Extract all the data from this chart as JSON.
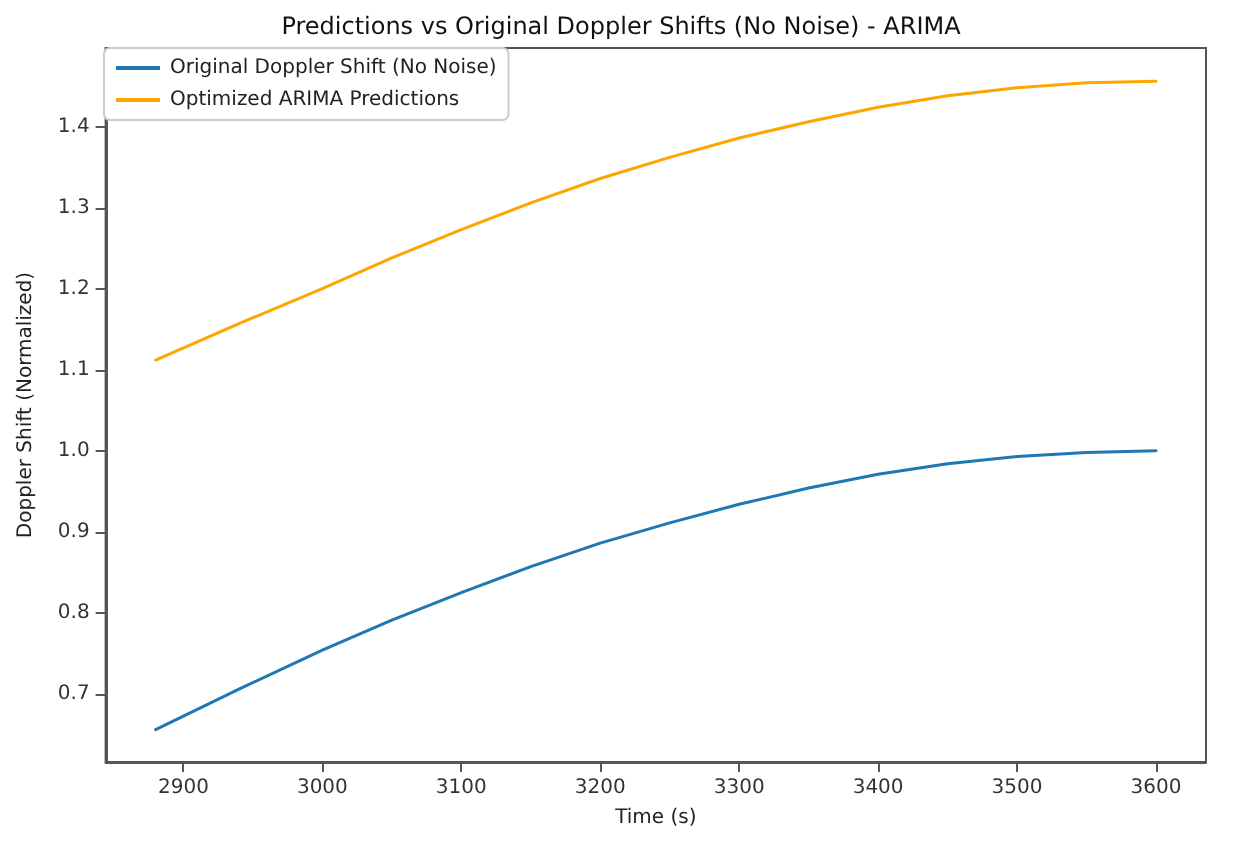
{
  "chart_data": {
    "type": "line",
    "title": "Predictions vs Original Doppler Shifts (No Noise) - ARIMA",
    "xlabel": "Time (s)",
    "ylabel": "Doppler Shift (Normalized)",
    "x": [
      2880,
      2940,
      3000,
      3050,
      3100,
      3150,
      3200,
      3250,
      3300,
      3350,
      3400,
      3450,
      3500,
      3550,
      3600
    ],
    "series": [
      {
        "name": "Original Doppler Shift (No Noise)",
        "color": "#1f77b4",
        "values": [
          0.656,
          0.706,
          0.754,
          0.791,
          0.825,
          0.857,
          0.886,
          0.911,
          0.934,
          0.954,
          0.971,
          0.984,
          0.993,
          0.998,
          1.0
        ]
      },
      {
        "name": "Optimized ARIMA Predictions",
        "color": "#ffa500",
        "values": [
          1.112,
          1.157,
          1.2,
          1.238,
          1.273,
          1.306,
          1.336,
          1.362,
          1.386,
          1.406,
          1.424,
          1.438,
          1.448,
          1.454,
          1.456
        ]
      }
    ],
    "xlim": [
      2844,
      3636
    ],
    "ylim": [
      0.616,
      1.497
    ],
    "xticks": [
      2900,
      3000,
      3100,
      3200,
      3300,
      3400,
      3500,
      3600
    ],
    "yticks": [
      0.7,
      0.8,
      0.9,
      {
        "value": 1,
        "label": "1.0"
      },
      1.1,
      1.2,
      1.3,
      1.4
    ],
    "grid": false,
    "legend": "top left",
    "marker": "none",
    "line_style": "solid"
  }
}
